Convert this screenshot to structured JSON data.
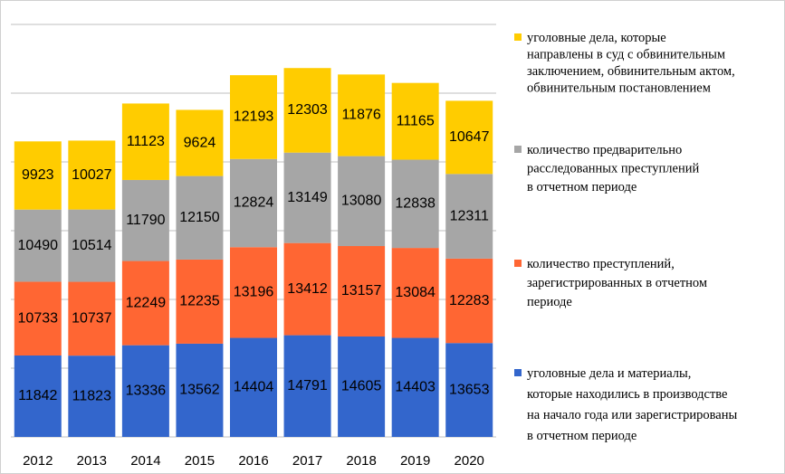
{
  "chart_data": {
    "type": "stacked_bar",
    "categories": [
      "2012",
      "2013",
      "2014",
      "2015",
      "2016",
      "2017",
      "2018",
      "2019",
      "2020"
    ],
    "series": [
      {
        "name": "уголовные дела и материалы,\nкоторые  находились  в производстве\nна начало года или зарегистрированы\nв отчетном периоде",
        "color": "#3366cc",
        "values": [
          11842,
          11823,
          13336,
          13562,
          14404,
          14791,
          14605,
          14403,
          13653
        ]
      },
      {
        "name": "количество преступлений,\nзарегистрированных в отчетном\nпериоде",
        "color": "#ff6633",
        "values": [
          10733,
          10737,
          12249,
          12235,
          13196,
          13412,
          13157,
          13084,
          12283
        ]
      },
      {
        "name": "количество предварительно\nрасследованных преступлений\nв отчетном периоде",
        "color": "#a6a6a6",
        "values": [
          10490,
          10514,
          11790,
          12150,
          12824,
          13149,
          13080,
          12838,
          12311
        ]
      },
      {
        "name": "уголовные дела,   которые\nнаправлены в суд с обвинительным\nзаключением, обвинительным актом,\nобвинительным  постановлением",
        "color": "#ffcc00",
        "values": [
          9923,
          10027,
          11123,
          9624,
          12193,
          12303,
          11876,
          11165,
          10647
        ]
      }
    ],
    "ylim": [
      0,
      60000
    ],
    "yticks": [
      0,
      10000,
      20000,
      30000,
      40000,
      50000,
      60000
    ],
    "grid": true,
    "legend": "right"
  }
}
